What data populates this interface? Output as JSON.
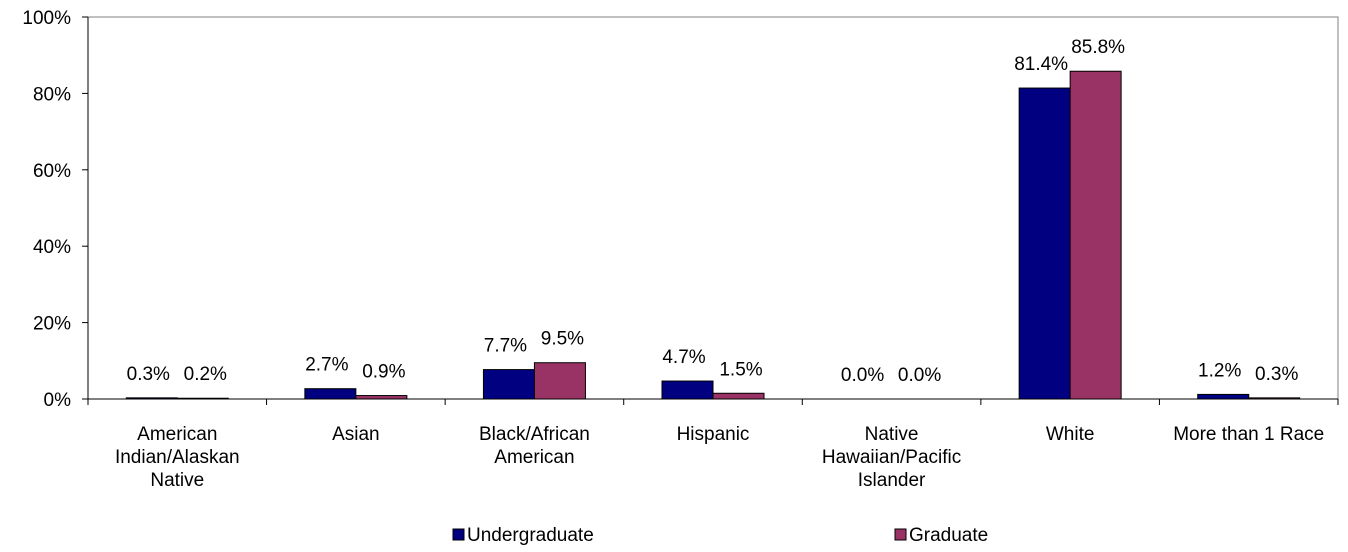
{
  "chart_data": {
    "type": "bar",
    "categories": [
      "American Indian/Alaskan Native",
      "Asian",
      "Black/African American",
      "Hispanic",
      "Native Hawaiian/Pacific Islander",
      "White",
      "More than 1 Race"
    ],
    "category_lines": [
      [
        "American",
        "Indian/Alaskan",
        "Native"
      ],
      [
        "Asian"
      ],
      [
        "Black/African",
        "American"
      ],
      [
        "Hispanic"
      ],
      [
        "Native",
        "Hawaiian/Pacific",
        "Islander"
      ],
      [
        "White"
      ],
      [
        "More than 1 Race"
      ]
    ],
    "series": [
      {
        "name": "Undergraduate",
        "color": "#000080",
        "values": [
          0.3,
          2.7,
          7.7,
          4.7,
          0.0,
          81.4,
          1.2
        ],
        "labels": [
          "0.3%",
          "2.7%",
          "7.7%",
          "4.7%",
          "0.0%",
          "81.4%",
          "1.2%"
        ]
      },
      {
        "name": "Graduate",
        "color": "#993366",
        "values": [
          0.2,
          0.9,
          9.5,
          1.5,
          0.0,
          85.8,
          0.3
        ],
        "labels": [
          "0.2%",
          "0.9%",
          "9.5%",
          "1.5%",
          "0.0%",
          "85.8%",
          "0.3%"
        ]
      }
    ],
    "ylim": [
      0,
      100
    ],
    "yticks": [
      0,
      20,
      40,
      60,
      80,
      100
    ],
    "ytick_labels": [
      "0%",
      "20%",
      "40%",
      "60%",
      "80%",
      "100%"
    ],
    "title": "",
    "xlabel": "",
    "ylabel": "",
    "grid": false,
    "legend_position": "bottom"
  }
}
